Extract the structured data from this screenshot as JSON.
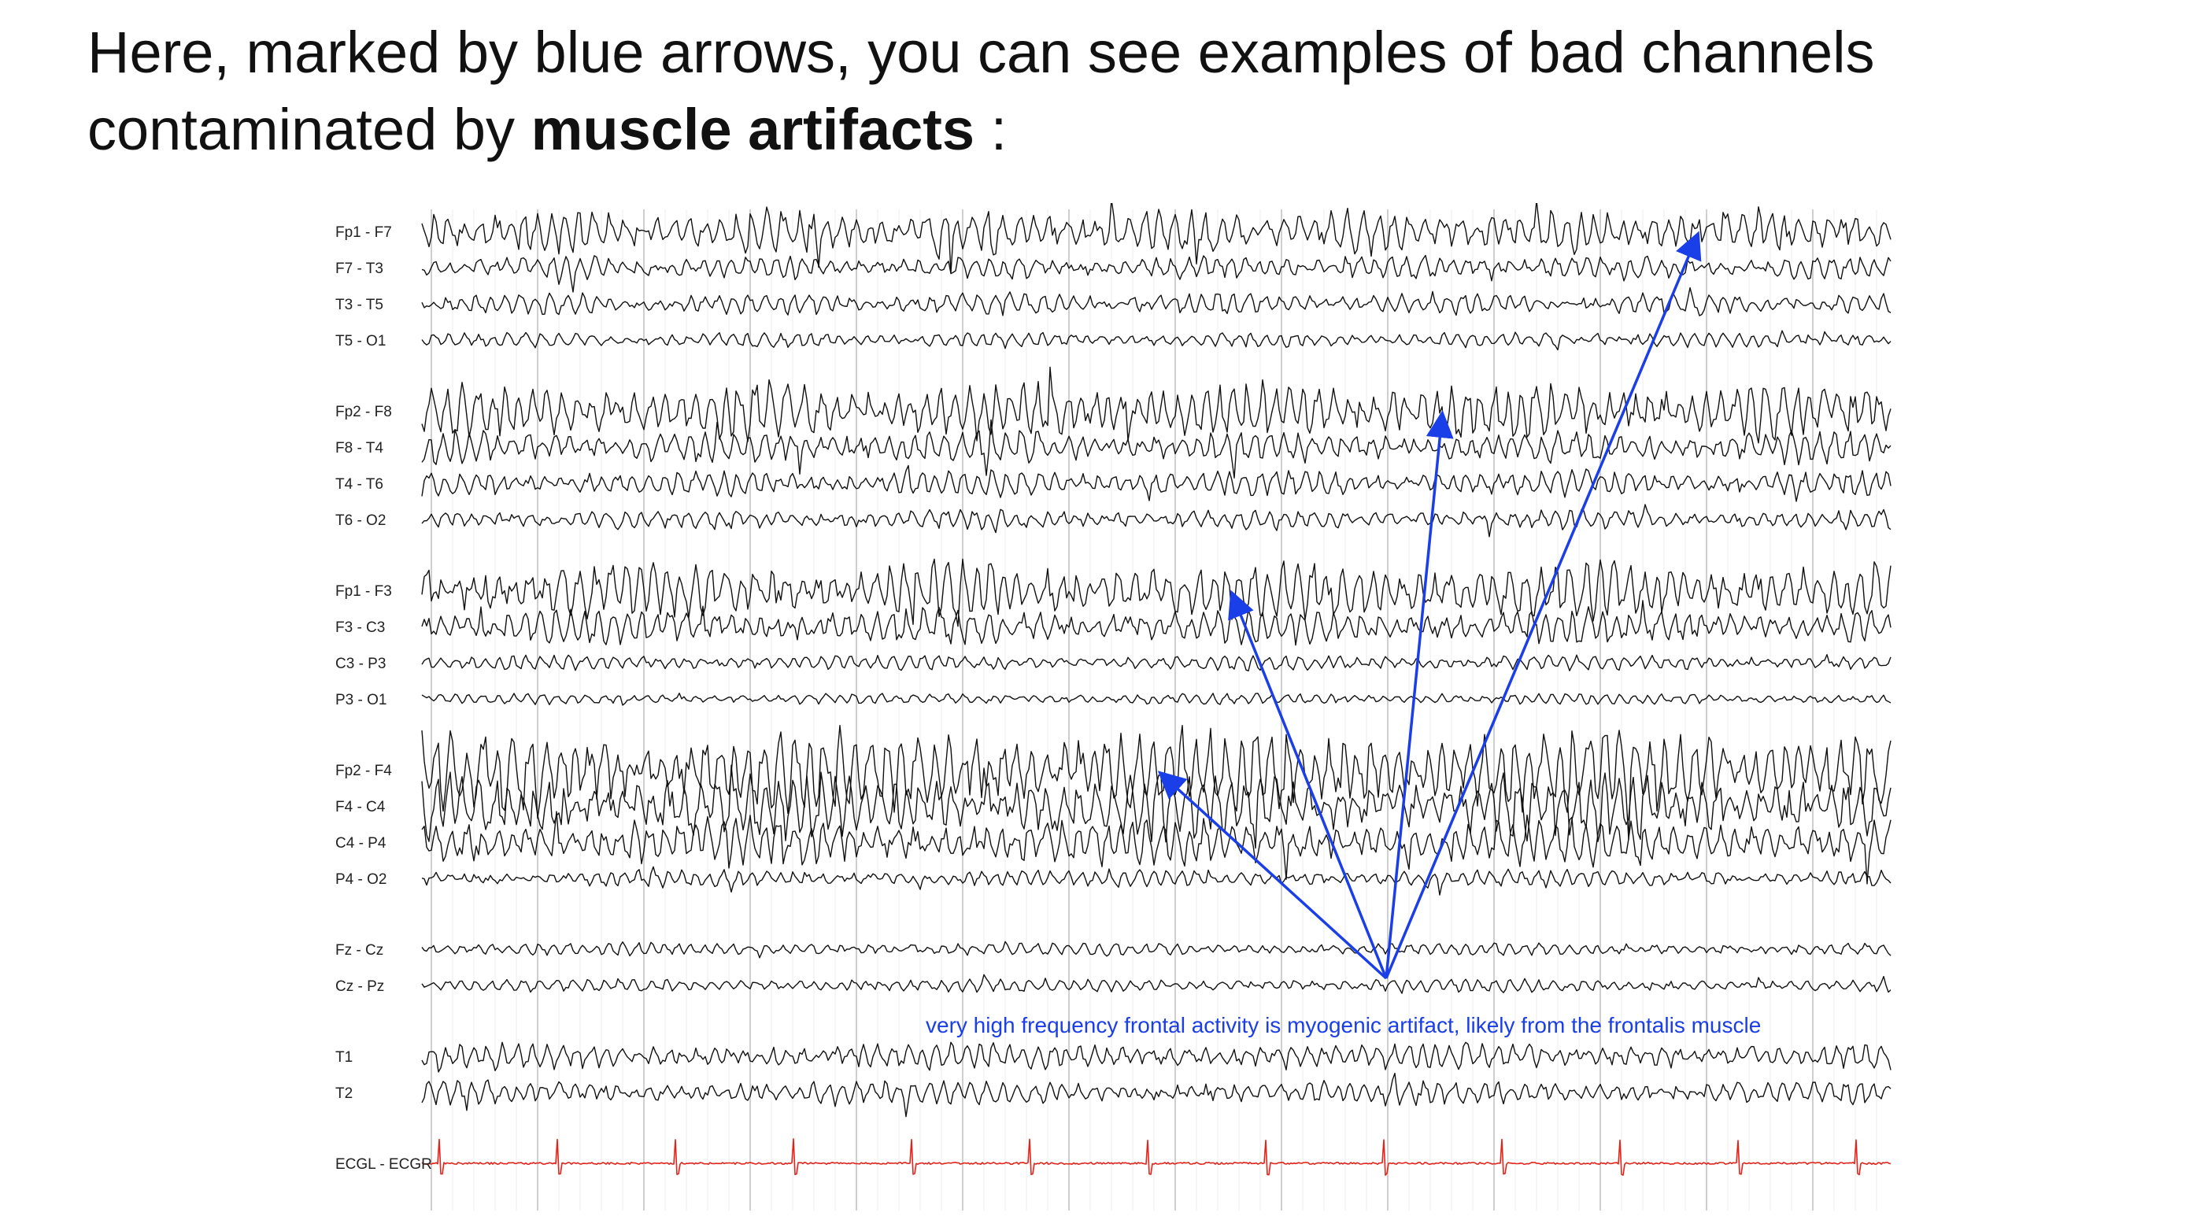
{
  "heading": {
    "line1": "Here, marked by blue arrows, you can see examples of bad channels",
    "line2_prefix": "contaminated by ",
    "line2_bold": "muscle artifacts",
    "line2_suffix": " :"
  },
  "eeg": {
    "channels": [
      {
        "label": "Fp1 - F7",
        "group": 0,
        "amp": 1.0
      },
      {
        "label": "F7 - T3",
        "group": 0,
        "amp": 0.55
      },
      {
        "label": "T3 - T5",
        "group": 0,
        "amp": 0.5
      },
      {
        "label": "T5 - O1",
        "group": 0,
        "amp": 0.35
      },
      {
        "label": "Fp2 - F8",
        "group": 1,
        "amp": 1.3
      },
      {
        "label": "F8 - T4",
        "group": 1,
        "amp": 0.75
      },
      {
        "label": "T4 - T6",
        "group": 1,
        "amp": 0.6
      },
      {
        "label": "T6 - O2",
        "group": 1,
        "amp": 0.45
      },
      {
        "label": "Fp1 - F3",
        "group": 2,
        "amp": 1.3
      },
      {
        "label": "F3 - C3",
        "group": 2,
        "amp": 0.8
      },
      {
        "label": "C3 - P3",
        "group": 2,
        "amp": 0.35
      },
      {
        "label": "P3 - O1",
        "group": 2,
        "amp": 0.25
      },
      {
        "label": "Fp2 - F4",
        "group": 3,
        "amp": 1.9
      },
      {
        "label": "F4 - C4",
        "group": 3,
        "amp": 1.5
      },
      {
        "label": "C4 - P4",
        "group": 3,
        "amp": 1.1
      },
      {
        "label": "P4 - O2",
        "group": 3,
        "amp": 0.4
      },
      {
        "label": "Fz - Cz",
        "group": 4,
        "amp": 0.3
      },
      {
        "label": "Cz - Pz",
        "group": 4,
        "amp": 0.3
      },
      {
        "label": "T1",
        "group": 5,
        "amp": 0.6
      },
      {
        "label": "T2",
        "group": 5,
        "amp": 0.55
      },
      {
        "label": "ECGL - ECGR",
        "group": 6,
        "amp": 0.5,
        "color": "#e2231a"
      }
    ],
    "trace_color": "#111111",
    "ecg_color": "#e2231a",
    "arrow_color": "#1a3ee8",
    "annotation": "very high frequency frontal activity is myogenic artifact, likely from the frontalis muscle",
    "arrow_targets": [
      "Fp1 - F7",
      "Fp2 - F8",
      "Fp1 - F3",
      "Fp2 - F4"
    ]
  }
}
